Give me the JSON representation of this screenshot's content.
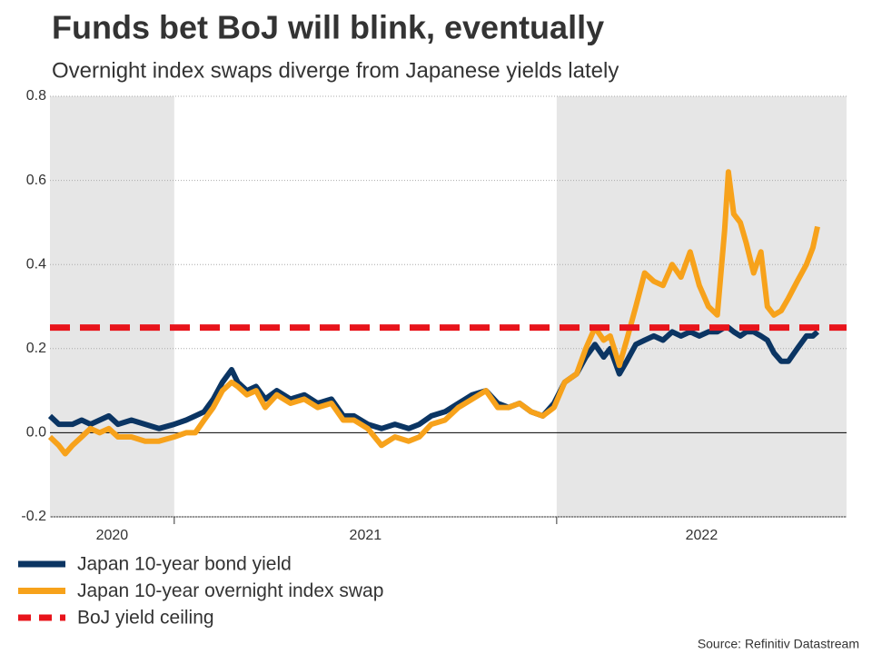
{
  "chart_data": {
    "type": "line",
    "title": "Funds bet BoJ will blink, eventually",
    "subtitle": "Overnight index swaps diverge from Japanese yields lately",
    "source": "Source: Refinitiv Datastream",
    "xlim": [
      2020.675,
      2022.758
    ],
    "xticks": [
      {
        "value": 2020,
        "label": "2020"
      },
      {
        "value": 2021,
        "label": "2021"
      },
      {
        "value": 2022,
        "label": "2022"
      }
    ],
    "shade_alternate_years": true,
    "shade_color": "#e6e6e6",
    "ylim": [
      -0.2,
      0.8
    ],
    "yticks": [
      -0.2,
      {
        "value": 0,
        "label": "0.0"
      },
      0.2,
      0.4,
      0.6,
      0.8
    ],
    "grid": true,
    "legend": "bottom-left",
    "series": [
      {
        "name": "Japan 10-year bond yield",
        "color": "#0b3563",
        "x": [
          2020.675,
          2020.698,
          2020.715,
          2020.734,
          2020.758,
          2020.781,
          2020.805,
          2020.829,
          2020.853,
          2020.888,
          2020.924,
          2020.96,
          2021.0,
          2021.031,
          2021.055,
          2021.078,
          2021.102,
          2021.126,
          2021.15,
          2021.166,
          2021.19,
          2021.214,
          2021.238,
          2021.268,
          2021.304,
          2021.34,
          2021.375,
          2021.411,
          2021.442,
          2021.47,
          2021.506,
          2021.542,
          2021.577,
          2021.613,
          2021.641,
          2021.672,
          2021.708,
          2021.743,
          2021.779,
          2021.815,
          2021.846,
          2021.874,
          2021.903,
          2021.933,
          2021.964,
          2021.993,
          2022.021,
          2022.052,
          2022.076,
          2022.1,
          2022.123,
          2022.14,
          2022.164,
          2022.183,
          2022.207,
          2022.23,
          2022.254,
          2022.278,
          2022.302,
          2022.325,
          2022.349,
          2022.373,
          2022.397,
          2022.42,
          2022.439,
          2022.449,
          2022.463,
          2022.48,
          2022.496,
          2022.515,
          2022.534,
          2022.551,
          2022.568,
          2022.587,
          2022.606,
          2022.629,
          2022.653,
          2022.67,
          2022.682
        ],
        "values": [
          0.04,
          0.02,
          0.02,
          0.02,
          0.03,
          0.02,
          0.03,
          0.04,
          0.02,
          0.03,
          0.02,
          0.01,
          0.02,
          0.03,
          0.04,
          0.05,
          0.08,
          0.12,
          0.15,
          0.12,
          0.1,
          0.11,
          0.08,
          0.1,
          0.08,
          0.09,
          0.07,
          0.08,
          0.04,
          0.04,
          0.02,
          0.01,
          0.02,
          0.01,
          0.02,
          0.04,
          0.05,
          0.07,
          0.09,
          0.1,
          0.07,
          0.06,
          0.07,
          0.05,
          0.04,
          0.07,
          0.12,
          0.14,
          0.18,
          0.21,
          0.18,
          0.2,
          0.14,
          0.17,
          0.21,
          0.22,
          0.23,
          0.22,
          0.24,
          0.23,
          0.24,
          0.23,
          0.24,
          0.24,
          0.25,
          0.25,
          0.24,
          0.23,
          0.24,
          0.24,
          0.23,
          0.22,
          0.19,
          0.17,
          0.17,
          0.2,
          0.23,
          0.23,
          0.24
        ]
      },
      {
        "name": "Japan 10-year overnight index swap",
        "color": "#f7a21b",
        "x": [
          2020.675,
          2020.698,
          2020.715,
          2020.734,
          2020.758,
          2020.781,
          2020.805,
          2020.829,
          2020.853,
          2020.888,
          2020.924,
          2020.96,
          2021.0,
          2021.031,
          2021.055,
          2021.078,
          2021.102,
          2021.126,
          2021.15,
          2021.166,
          2021.19,
          2021.214,
          2021.238,
          2021.268,
          2021.304,
          2021.34,
          2021.375,
          2021.411,
          2021.442,
          2021.47,
          2021.506,
          2021.542,
          2021.577,
          2021.613,
          2021.641,
          2021.672,
          2021.708,
          2021.743,
          2021.779,
          2021.815,
          2021.846,
          2021.874,
          2021.903,
          2021.933,
          2021.964,
          2021.993,
          2022.021,
          2022.052,
          2022.076,
          2022.1,
          2022.123,
          2022.14,
          2022.164,
          2022.183,
          2022.207,
          2022.23,
          2022.254,
          2022.278,
          2022.302,
          2022.325,
          2022.349,
          2022.373,
          2022.397,
          2022.42,
          2022.439,
          2022.449,
          2022.463,
          2022.48,
          2022.496,
          2022.515,
          2022.534,
          2022.551,
          2022.568,
          2022.587,
          2022.606,
          2022.629,
          2022.653,
          2022.67,
          2022.682
        ],
        "values": [
          -0.01,
          -0.03,
          -0.05,
          -0.03,
          -0.01,
          0.01,
          0.0,
          0.01,
          -0.01,
          -0.01,
          -0.02,
          -0.02,
          -0.01,
          0.0,
          0.0,
          0.03,
          0.06,
          0.1,
          0.12,
          0.11,
          0.09,
          0.1,
          0.06,
          0.09,
          0.07,
          0.08,
          0.06,
          0.07,
          0.03,
          0.03,
          0.01,
          -0.03,
          -0.01,
          -0.02,
          -0.01,
          0.02,
          0.03,
          0.06,
          0.08,
          0.1,
          0.06,
          0.06,
          0.07,
          0.05,
          0.04,
          0.06,
          0.12,
          0.14,
          0.2,
          0.25,
          0.22,
          0.23,
          0.16,
          0.22,
          0.3,
          0.38,
          0.36,
          0.35,
          0.4,
          0.37,
          0.43,
          0.35,
          0.3,
          0.28,
          0.48,
          0.62,
          0.52,
          0.5,
          0.45,
          0.38,
          0.43,
          0.3,
          0.28,
          0.29,
          0.32,
          0.36,
          0.4,
          0.44,
          0.49
        ]
      },
      {
        "name": "BoJ yield ceiling",
        "color": "#e8141b",
        "dashed": true,
        "x": [
          2020.675,
          2022.758
        ],
        "values": [
          0.25,
          0.25
        ]
      }
    ]
  }
}
